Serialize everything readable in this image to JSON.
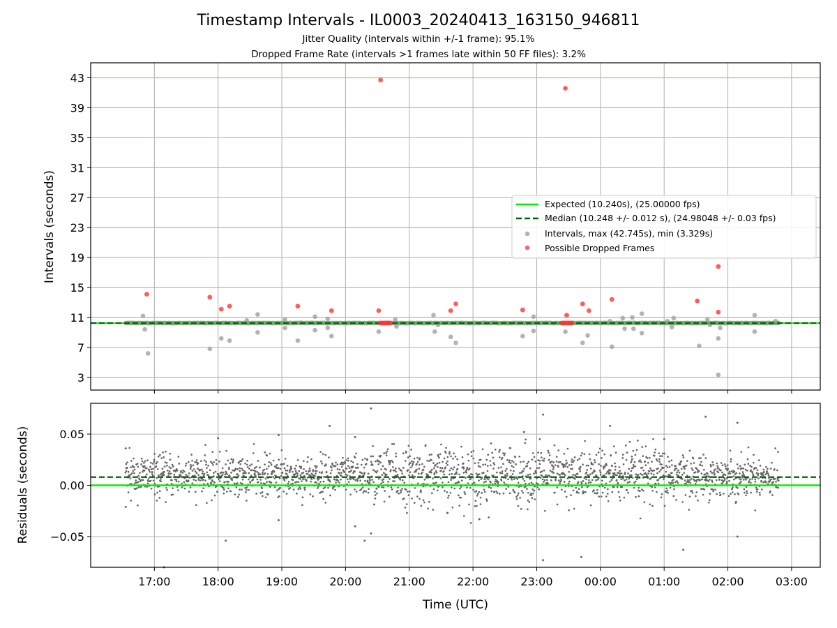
{
  "title": "Timestamp Intervals - IL0003_20240413_163150_946811",
  "subtitle_1": "Jitter Quality (intervals within +/-1 frame): 95.1%",
  "subtitle_2": "Dropped Frame Rate (intervals >1 frames late within 50 FF files): 3.2%",
  "colors": {
    "expected": "#00ee00",
    "median": "#006400",
    "intervals": "#999999",
    "dropped": "#ff3333",
    "hgrid_top": "#d4b26a",
    "grid": "#b0b0b0",
    "residual": "#666666"
  },
  "chart_data": [
    {
      "type": "scatter",
      "panel": "intervals",
      "xlabel": "",
      "ylabel": "Intervals (seconds)",
      "ylim": [
        1.3,
        45
      ],
      "yticks": [
        "3",
        "7",
        "11",
        "15",
        "19",
        "23",
        "27",
        "31",
        "35",
        "39",
        "43"
      ],
      "x_range_hours": [
        16.0,
        27.45
      ],
      "grid": true,
      "legend_position": "center-right",
      "legend": [
        "Expected (10.240s), (25.00000 fps)",
        "Median (10.248 +/- 0.012 s), (24.98048 +/- 0.03 fps)",
        "Intervals, max (42.745s), min (3.329s)",
        "Possible Dropped Frames"
      ],
      "expected": 10.24,
      "median": 10.248,
      "baseline_x_range_hours": [
        16.55,
        26.8
      ],
      "intervals": [
        [
          16.82,
          11.2
        ],
        [
          16.85,
          9.4
        ],
        [
          16.9,
          6.2
        ],
        [
          17.87,
          6.8
        ],
        [
          18.05,
          8.2
        ],
        [
          18.18,
          7.9
        ],
        [
          18.45,
          10.6
        ],
        [
          18.62,
          11.4
        ],
        [
          18.62,
          9.0
        ],
        [
          19.05,
          10.7
        ],
        [
          19.05,
          9.6
        ],
        [
          19.25,
          7.9
        ],
        [
          19.3,
          10.3
        ],
        [
          19.52,
          9.3
        ],
        [
          19.52,
          11.1
        ],
        [
          19.72,
          10.8
        ],
        [
          19.72,
          9.6
        ],
        [
          19.78,
          8.5
        ],
        [
          20.52,
          9.1
        ],
        [
          20.78,
          10.7
        ],
        [
          20.8,
          9.8
        ],
        [
          21.38,
          11.3
        ],
        [
          21.4,
          9.1
        ],
        [
          21.45,
          10.0
        ],
        [
          21.65,
          8.4
        ],
        [
          21.73,
          7.6
        ],
        [
          22.78,
          8.5
        ],
        [
          22.95,
          11.1
        ],
        [
          22.95,
          9.2
        ],
        [
          23.45,
          9.1
        ],
        [
          23.72,
          7.6
        ],
        [
          23.8,
          8.6
        ],
        [
          24.15,
          10.5
        ],
        [
          24.18,
          7.1
        ],
        [
          24.35,
          10.9
        ],
        [
          24.38,
          9.5
        ],
        [
          24.5,
          11.0
        ],
        [
          24.52,
          9.5
        ],
        [
          24.65,
          11.5
        ],
        [
          24.65,
          8.9
        ],
        [
          25.05,
          10.5
        ],
        [
          25.12,
          9.7
        ],
        [
          25.15,
          10.9
        ],
        [
          25.55,
          7.2
        ],
        [
          25.68,
          10.7
        ],
        [
          25.72,
          10.0
        ],
        [
          25.85,
          3.33
        ],
        [
          25.85,
          8.2
        ],
        [
          25.88,
          9.6
        ],
        [
          26.42,
          11.3
        ],
        [
          26.42,
          9.1
        ],
        [
          26.75,
          10.5
        ]
      ],
      "dropped": [
        [
          16.88,
          14.1
        ],
        [
          17.87,
          13.7
        ],
        [
          18.05,
          12.1
        ],
        [
          18.18,
          12.5
        ],
        [
          19.25,
          12.5
        ],
        [
          19.78,
          11.9
        ],
        [
          20.52,
          11.9
        ],
        [
          20.55,
          42.7
        ],
        [
          21.65,
          11.9
        ],
        [
          21.73,
          12.8
        ],
        [
          22.78,
          12.0
        ],
        [
          23.45,
          41.6
        ],
        [
          23.47,
          11.3
        ],
        [
          23.72,
          12.8
        ],
        [
          23.82,
          11.9
        ],
        [
          24.18,
          13.4
        ],
        [
          25.52,
          13.2
        ],
        [
          25.85,
          17.8
        ],
        [
          25.85,
          11.7
        ],
        [
          20.55,
          10.25
        ],
        [
          20.58,
          10.25
        ],
        [
          20.61,
          10.25
        ],
        [
          20.64,
          10.25
        ],
        [
          20.67,
          10.25
        ],
        [
          20.7,
          10.25
        ],
        [
          23.4,
          10.25
        ],
        [
          23.43,
          10.25
        ],
        [
          23.46,
          10.25
        ],
        [
          23.49,
          10.25
        ],
        [
          23.52,
          10.25
        ],
        [
          23.55,
          10.25
        ]
      ]
    },
    {
      "type": "scatter",
      "panel": "residuals",
      "xlabel": "Time (UTC)",
      "ylabel": "Residuals (seconds)",
      "ylim": [
        -0.08,
        0.08
      ],
      "yticks": [
        "−0.05",
        "0.00",
        "0.05"
      ],
      "xticks": [
        "17:00",
        "18:00",
        "19:00",
        "20:00",
        "21:00",
        "22:00",
        "23:00",
        "00:00",
        "01:00",
        "02:00",
        "03:00"
      ],
      "x_range_hours": [
        16.0,
        27.45
      ],
      "grid": true,
      "expected": 0.0,
      "median": 0.008,
      "n_points": 2200,
      "residual_mean": 0.009,
      "residual_spread": 0.011,
      "outliers": [
        [
          16.55,
          0.036
        ],
        [
          16.55,
          -0.021
        ],
        [
          17.15,
          -0.08
        ],
        [
          18.0,
          0.046
        ],
        [
          18.12,
          -0.054
        ],
        [
          18.95,
          0.049
        ],
        [
          18.95,
          -0.034
        ],
        [
          19.75,
          0.058
        ],
        [
          20.15,
          0.047
        ],
        [
          20.15,
          -0.04
        ],
        [
          20.3,
          -0.054
        ],
        [
          20.4,
          0.075
        ],
        [
          20.4,
          -0.047
        ],
        [
          21.6,
          -0.027
        ],
        [
          22.1,
          -0.033
        ],
        [
          22.8,
          0.052
        ],
        [
          23.1,
          0.069
        ],
        [
          23.1,
          -0.073
        ],
        [
          23.7,
          -0.07
        ],
        [
          24.15,
          0.058
        ],
        [
          25.3,
          -0.063
        ],
        [
          25.65,
          0.067
        ],
        [
          26.15,
          0.061
        ],
        [
          26.15,
          -0.05
        ]
      ]
    }
  ]
}
